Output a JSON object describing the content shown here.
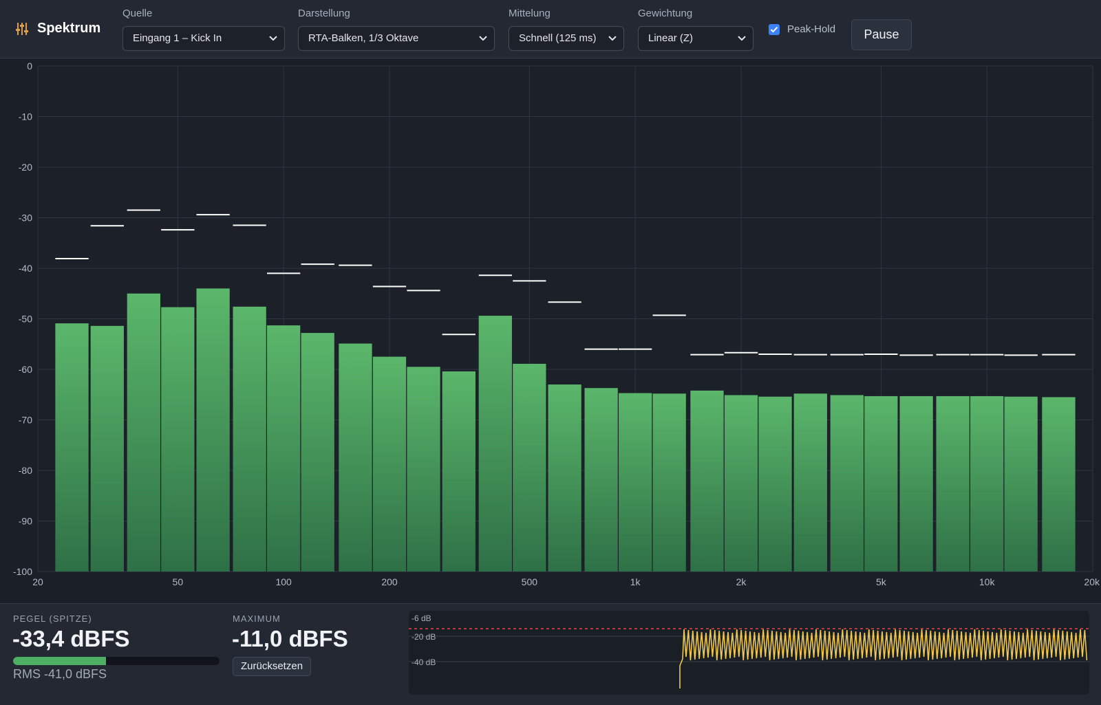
{
  "app": {
    "title": "Spektrum"
  },
  "toolbar": {
    "source": {
      "label": "Quelle",
      "value": "Eingang 1 – Kick In"
    },
    "display": {
      "label": "Darstellung",
      "value": "RTA-Balken, 1/3 Oktave"
    },
    "averaging": {
      "label": "Mittelung",
      "value": "Schnell (125 ms)"
    },
    "weighting": {
      "label": "Gewichtung",
      "value": "Linear (Z)"
    },
    "peak_hold": {
      "label": "Peak-Hold",
      "checked": true
    },
    "pause_label": "Pause"
  },
  "chart_data": {
    "type": "bar",
    "x_scale": "log",
    "xlim": [
      20,
      20000
    ],
    "ylim": [
      -100,
      0
    ],
    "grid": true,
    "ytick_labels": [
      "0",
      "-10",
      "-20",
      "-30",
      "-40",
      "-50",
      "-60",
      "-70",
      "-80",
      "-90",
      "-100"
    ],
    "xticks": [
      {
        "v": 20,
        "label": "20"
      },
      {
        "v": 50,
        "label": "50"
      },
      {
        "v": 100,
        "label": "100"
      },
      {
        "v": 200,
        "label": "200"
      },
      {
        "v": 500,
        "label": "500"
      },
      {
        "v": 1000,
        "label": "1k"
      },
      {
        "v": 2000,
        "label": "2k"
      },
      {
        "v": 5000,
        "label": "5k"
      },
      {
        "v": 10000,
        "label": "10k"
      },
      {
        "v": 20000,
        "label": "20k"
      }
    ],
    "bands_hz": [
      25,
      31.5,
      40,
      50,
      63,
      80,
      100,
      125,
      160,
      200,
      250,
      315,
      400,
      500,
      630,
      800,
      1000,
      1250,
      1600,
      2000,
      2500,
      3150,
      4000,
      5000,
      6300,
      8000,
      10000,
      12500,
      16000
    ],
    "levels_db": [
      -50.9,
      -51.4,
      -45.0,
      -47.7,
      -44.0,
      -47.6,
      -51.3,
      -52.8,
      -54.9,
      -57.5,
      -59.5,
      -60.4,
      -49.4,
      -58.9,
      -63.0,
      -63.7,
      -64.7,
      -64.8,
      -64.2,
      -65.1,
      -65.4,
      -64.8,
      -65.1,
      -65.3,
      -65.3,
      -65.3,
      -65.3,
      -65.4,
      -65.5
    ],
    "peaks_db": [
      -38.1,
      -31.6,
      -28.5,
      -32.4,
      -29.4,
      -31.5,
      -41.0,
      -39.2,
      -39.4,
      -43.6,
      -44.4,
      -53.1,
      -41.4,
      -42.5,
      -46.7,
      -56.0,
      -56.0,
      -49.3,
      -57.1,
      -56.7,
      -57.0,
      -57.1,
      -57.1,
      -57.0,
      -57.2,
      -57.1,
      -57.1,
      -57.2,
      -57.1
    ]
  },
  "meters": {
    "peak": {
      "label": "PEGEL (SPITZE)",
      "value": "-33,4 dBFS",
      "fill": 0.45,
      "rms": "RMS -41,0 dBFS"
    },
    "max": {
      "label": "MAXIMUM",
      "value": "-11,0 dBFS",
      "reset_label": "Zurücksetzen"
    }
  },
  "history": {
    "labels": [
      "-6 dB",
      "-20 dB",
      "-40 dB"
    ],
    "threshold_color": "#e04848",
    "line_color": "#f2c94c"
  },
  "colors": {
    "bar_top": "#5bb76b",
    "bar_bottom": "#2e7046",
    "peak_line": "#ffffff"
  }
}
